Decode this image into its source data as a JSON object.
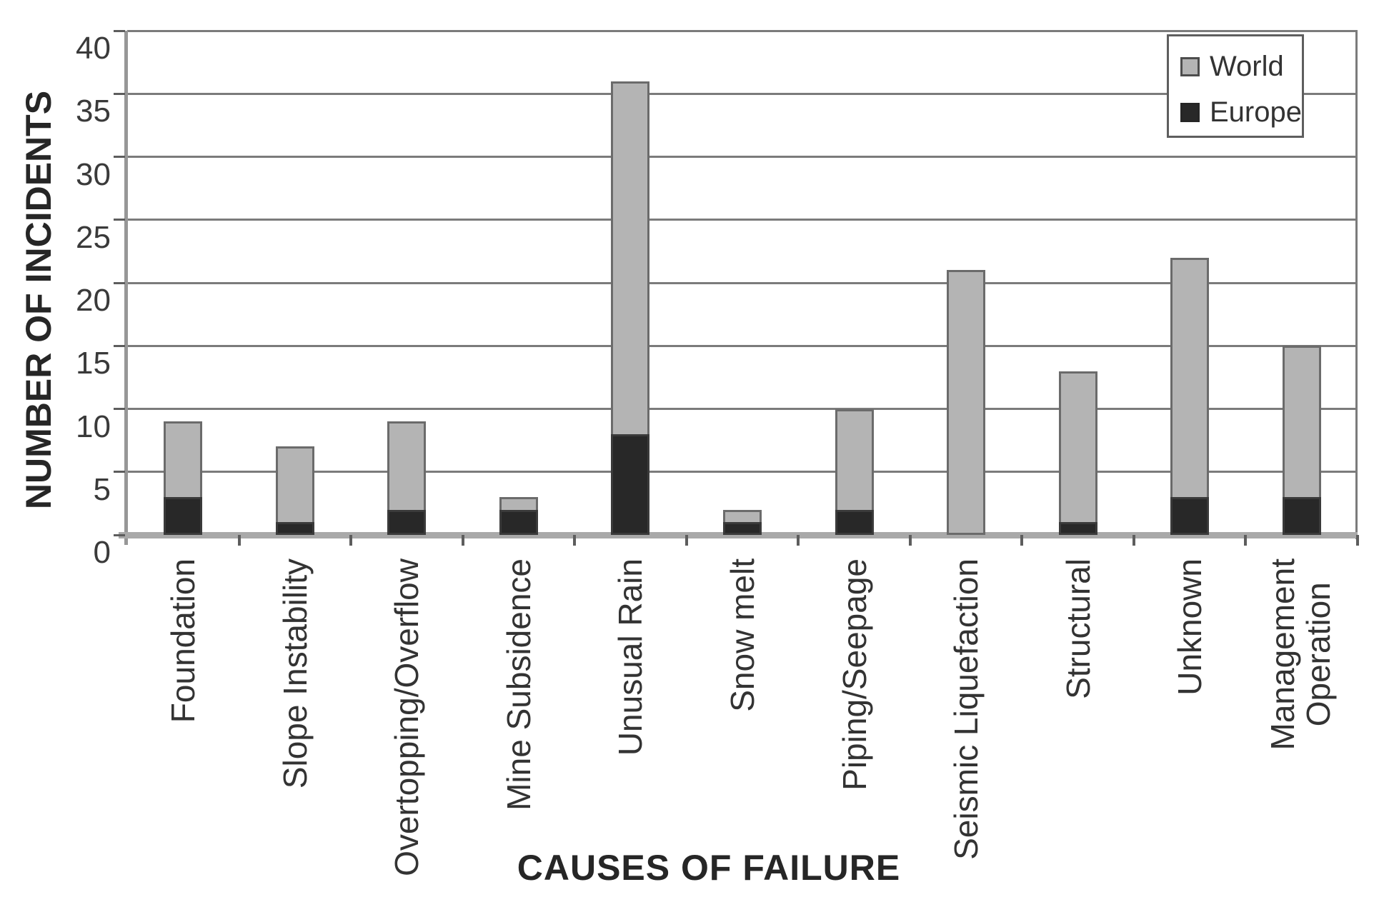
{
  "chart_data": {
    "type": "bar",
    "title": "",
    "xlabel": "CAUSES OF FAILURE",
    "ylabel": "NUMBER OF INCIDENTS",
    "ylim": [
      0,
      40
    ],
    "ytick_step": 5,
    "ytick_labels": [
      "0",
      "5",
      "10",
      "15",
      "20",
      "25",
      "30",
      "35",
      "40"
    ],
    "grid": true,
    "legend_position": "top-right",
    "categories": [
      "Foundation",
      "Slope Instability",
      "Overtopping/Overflow",
      "Mine Subsidence",
      "Unusual Rain",
      "Snow melt",
      "Piping/Seepage",
      "Seismic Liquefaction",
      "Structural",
      "Unknown",
      "Management\nOperation"
    ],
    "series": [
      {
        "name": "World",
        "color": "#b4b4b4",
        "values": [
          9,
          7,
          9,
          3,
          36,
          2,
          10,
          21,
          13,
          22,
          15
        ]
      },
      {
        "name": "Europe",
        "color": "#282828",
        "values": [
          3,
          1,
          2,
          2,
          8,
          1,
          2,
          0,
          1,
          3,
          3
        ]
      }
    ],
    "bar_style": "World bars show total height; Europe values drawn as dark segment at bar base"
  }
}
